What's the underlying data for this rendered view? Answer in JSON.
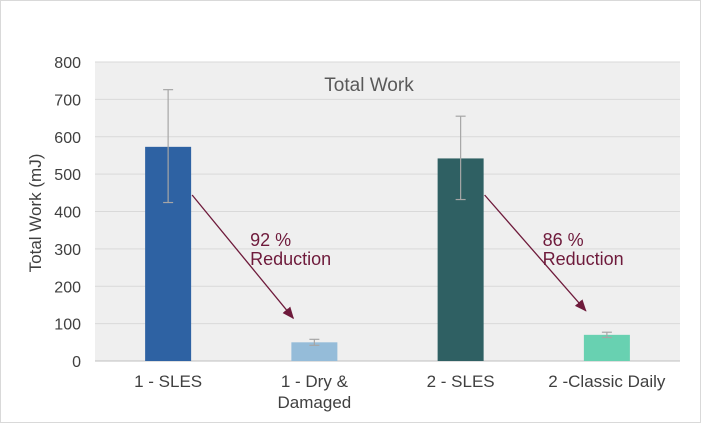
{
  "chart_data": {
    "type": "bar",
    "title": "Total Work",
    "xlabel": "",
    "ylabel": "Total Work (mJ)",
    "ylim": [
      0,
      800
    ],
    "yticks": [
      0,
      100,
      200,
      300,
      400,
      500,
      600,
      700,
      800
    ],
    "grid": true,
    "categories": [
      "1 - SLES",
      "1 - Dry & Damaged",
      "2 - SLES",
      "2 -Classic Daily"
    ],
    "category_lines": [
      [
        "1 - SLES"
      ],
      [
        "1 - Dry &",
        "Damaged"
      ],
      [
        "2 - SLES"
      ],
      [
        "2 -Classic Daily"
      ]
    ],
    "values": [
      573,
      50,
      542,
      70
    ],
    "error_low": [
      424,
      42,
      432,
      63
    ],
    "error_high": [
      726,
      58,
      655,
      77
    ],
    "bar_colors": [
      "#2e62a3",
      "#95bcd9",
      "#2f6063",
      "#68d1b1"
    ],
    "annotations": [
      {
        "line1": "92 %",
        "line2": "Reduction",
        "from_index": 0,
        "to_index": 1
      },
      {
        "line1": "86 %",
        "line2": "Reduction",
        "from_index": 2,
        "to_index": 3
      }
    ],
    "annotation_color": "#6e1a3b"
  }
}
